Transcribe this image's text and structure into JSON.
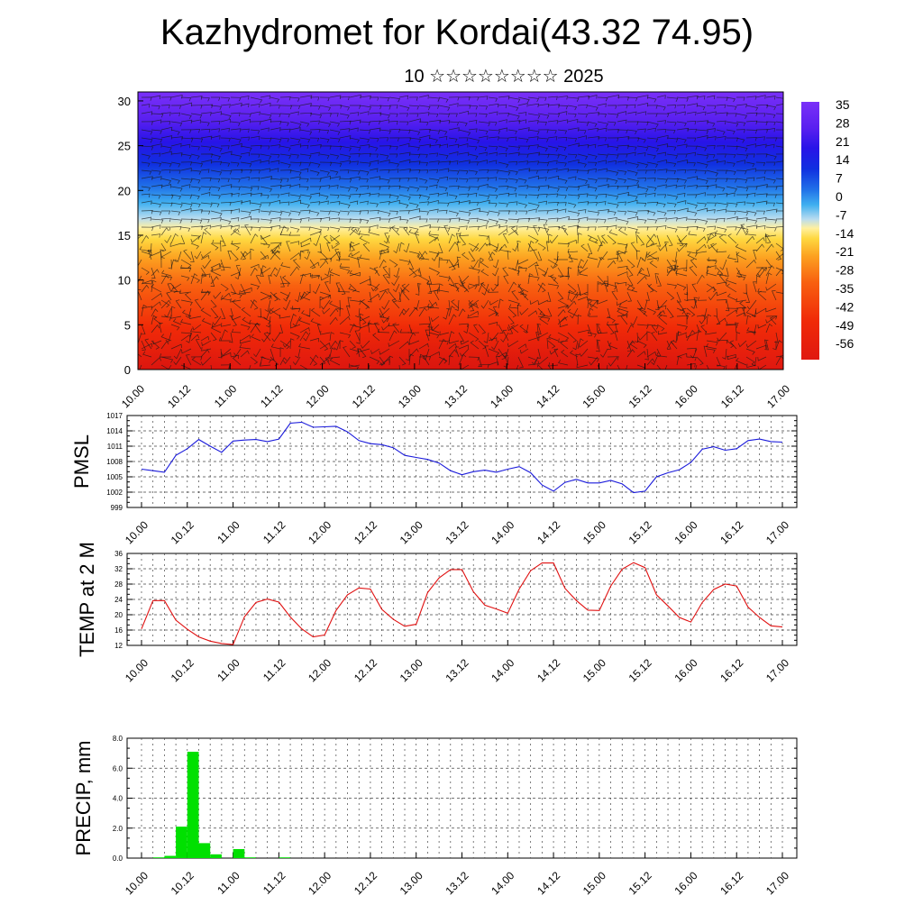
{
  "title": "Kazhydromet for Kordai(43.32 74.95)",
  "subtitle": "10 ☆☆☆☆☆☆☆☆ 2025",
  "colors": {
    "pmsl_line": "#1a1adb",
    "temp_line": "#e01010",
    "precip_bar": "#00e000",
    "grid": "#555555"
  },
  "chart_data": [
    {
      "id": "cross-section",
      "type": "heatmap",
      "description_of_axes": "x = forecast time (day.hour), y = height level",
      "x_tick_labels": [
        "10.00",
        "10.12",
        "11.00",
        "11.12",
        "12.00",
        "12.12",
        "13.00",
        "13.12",
        "14.00",
        "14.12",
        "15.00",
        "15.12",
        "16.00",
        "16.12",
        "17.00"
      ],
      "y_ticks": [
        0,
        5,
        10,
        15,
        20,
        25,
        30
      ],
      "ylim": [
        0,
        31
      ],
      "colorbar_labels": [
        "35",
        "28",
        "21",
        "14",
        "7",
        "0",
        "-7",
        "-14",
        "-21",
        "-28",
        "-35",
        "-42",
        "-49",
        "-56"
      ],
      "overlay": "wind barbs"
    },
    {
      "id": "pmsl",
      "type": "line",
      "ylabel": "PMSL",
      "x_tick_labels": [
        "10.00",
        "10.12",
        "11.00",
        "11.12",
        "12.00",
        "12.12",
        "13.00",
        "13.12",
        "14.00",
        "14.12",
        "15.00",
        "15.12",
        "16.00",
        "16.12",
        "17.00"
      ],
      "y_tick_labels": [
        "1017",
        "1014",
        "1011",
        "1008",
        "1005",
        "1002",
        "999"
      ],
      "ylim": [
        999,
        1017
      ],
      "x_step_hours": 3,
      "values": [
        1006.5,
        1006.2,
        1005.9,
        1009.2,
        1010.5,
        1012.3,
        1011.0,
        1009.8,
        1012.0,
        1012.2,
        1012.3,
        1011.9,
        1012.4,
        1015.5,
        1015.7,
        1014.7,
        1014.8,
        1014.9,
        1013.8,
        1012.1,
        1011.5,
        1011.3,
        1010.7,
        1009.2,
        1008.8,
        1008.4,
        1007.7,
        1006.2,
        1005.4,
        1006.0,
        1006.3,
        1005.9,
        1006.5,
        1007.0,
        1005.8,
        1003.4,
        1002.2,
        1003.9,
        1004.5,
        1003.8,
        1003.8,
        1004.3,
        1003.6,
        1001.9,
        1002.2,
        1005.0,
        1005.8,
        1006.4,
        1007.8,
        1010.4,
        1010.9,
        1010.2,
        1010.5,
        1012.1,
        1012.4,
        1011.9,
        1011.8
      ]
    },
    {
      "id": "temp",
      "type": "line",
      "ylabel": "TEMP at 2 M",
      "x_tick_labels": [
        "10.00",
        "10.12",
        "11.00",
        "11.12",
        "12.00",
        "12.12",
        "13.00",
        "13.12",
        "14.00",
        "14.12",
        "15.00",
        "15.12",
        "16.00",
        "16.12",
        "17.00"
      ],
      "y_tick_labels": [
        "36",
        "32",
        "28",
        "24",
        "20",
        "16",
        "12"
      ],
      "ylim": [
        12,
        36
      ],
      "x_step_hours": 3,
      "values": [
        16.3,
        23.7,
        23.7,
        18.6,
        16.2,
        14.2,
        13.1,
        12.5,
        12.2,
        19.5,
        23.2,
        24.1,
        23.3,
        19.4,
        16.3,
        14.2,
        14.7,
        21.1,
        25.2,
        27.0,
        26.7,
        21.4,
        18.8,
        17.0,
        17.5,
        25.8,
        29.6,
        31.8,
        31.8,
        26.0,
        22.5,
        21.5,
        20.4,
        26.7,
        31.5,
        33.5,
        33.5,
        26.9,
        23.7,
        21.2,
        21.1,
        27.5,
        31.9,
        33.6,
        32.3,
        25.2,
        22.3,
        19.3,
        18.1,
        23.2,
        26.6,
        28.0,
        27.5,
        22.0,
        19.3,
        17.1,
        16.8
      ]
    },
    {
      "id": "precip",
      "type": "bar",
      "ylabel": "PRECIP, mm",
      "x_tick_labels": [
        "10.00",
        "10.12",
        "11.00",
        "11.12",
        "12.00",
        "12.12",
        "13.00",
        "13.12",
        "14.00",
        "14.12",
        "15.00",
        "15.12",
        "16.00",
        "16.12",
        "17.00"
      ],
      "y_tick_labels": [
        "8.0",
        "6.0",
        "4.0",
        "2.0",
        "0.0"
      ],
      "ylim": [
        0,
        8
      ],
      "x_step_hours": 3,
      "values": [
        0,
        0.05,
        0.15,
        2.1,
        7.1,
        1.0,
        0.25,
        0,
        0.6,
        0.05,
        0,
        0,
        0.05,
        0,
        0,
        0,
        0,
        0,
        0,
        0,
        0,
        0,
        0,
        0,
        0,
        0,
        0,
        0,
        0,
        0,
        0,
        0,
        0,
        0,
        0,
        0,
        0,
        0,
        0,
        0,
        0,
        0,
        0,
        0,
        0,
        0,
        0,
        0,
        0,
        0,
        0,
        0,
        0,
        0,
        0,
        0
      ]
    }
  ]
}
